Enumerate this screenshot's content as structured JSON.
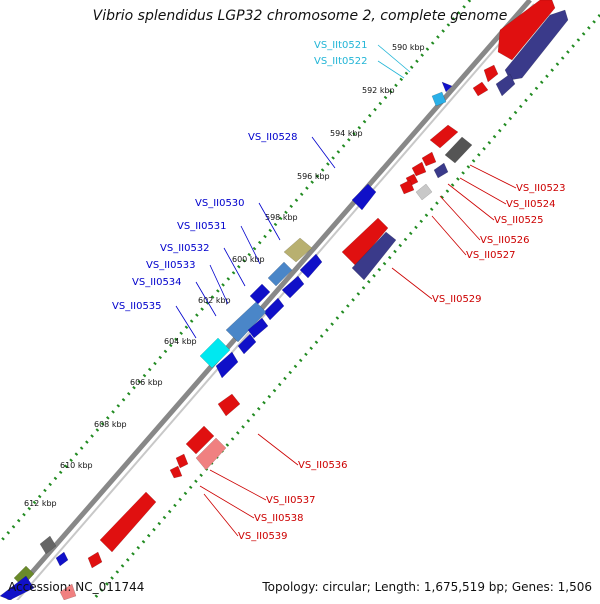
{
  "title": "Vibrio splendidus LGP32 chromosome 2, complete genome",
  "accession": "Accession: NC_011744",
  "summary": "Topology: circular; Length: 1,675,519 bp; Genes: 1,506",
  "colors": {
    "backbone": "#888888",
    "tick_dots": "#228b22",
    "left_label": "#0000cc",
    "right_label": "#cc0000",
    "cyan_label": "#22b5d6"
  },
  "kbp_ticks": [
    {
      "label": "590 kbp"
    },
    {
      "label": "592 kbp"
    },
    {
      "label": "594 kbp"
    },
    {
      "label": "596 kbp"
    },
    {
      "label": "598 kbp"
    },
    {
      "label": "600 kbp"
    },
    {
      "label": "602 kbp"
    },
    {
      "label": "604 kbp"
    },
    {
      "label": "606 kbp"
    },
    {
      "label": "608 kbp"
    },
    {
      "label": "610 kbp"
    },
    {
      "label": "612 kbp"
    }
  ],
  "left_labels": [
    {
      "text": "VS_IIt0521",
      "color": "cyan"
    },
    {
      "text": "VS_IIt0522",
      "color": "cyan"
    },
    {
      "text": "VS_II0528",
      "color": "blue"
    },
    {
      "text": "VS_II0530",
      "color": "blue"
    },
    {
      "text": "VS_II0531",
      "color": "blue"
    },
    {
      "text": "VS_II0532",
      "color": "blue"
    },
    {
      "text": "VS_II0533",
      "color": "blue"
    },
    {
      "text": "VS_II0534",
      "color": "blue"
    },
    {
      "text": "VS_II0535",
      "color": "blue"
    }
  ],
  "right_labels": [
    {
      "text": "VS_II0523"
    },
    {
      "text": "VS_II0524"
    },
    {
      "text": "VS_II0525"
    },
    {
      "text": "VS_II0526"
    },
    {
      "text": "VS_II0527"
    },
    {
      "text": "VS_II0529"
    },
    {
      "text": "VS_II0536"
    },
    {
      "text": "VS_II0537"
    },
    {
      "text": "VS_II0538"
    },
    {
      "text": "VS_II0539"
    }
  ]
}
